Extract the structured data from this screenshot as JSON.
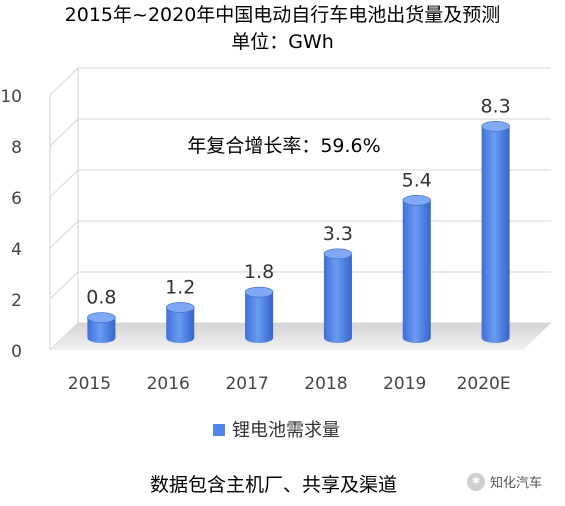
{
  "chart_data": {
    "type": "bar",
    "title": "2015年~2020年中国电动自行车电池出货量及预测",
    "subtitle": "单位：GWh",
    "categories": [
      "2015",
      "2016",
      "2017",
      "2018",
      "2019",
      "2020E"
    ],
    "series": [
      {
        "name": "锂电池需求量",
        "values": [
          0.8,
          1.2,
          1.8,
          3.3,
          5.4,
          8.3
        ]
      }
    ],
    "data_labels": [
      "0.8",
      "1.2",
      "1.8",
      "3.3",
      "5.4",
      "8.3"
    ],
    "y_ticks": [
      "0",
      "2",
      "4",
      "6",
      "8",
      "10"
    ],
    "ylim": [
      0,
      10
    ],
    "annotation": "年复合增长率：59.6%",
    "legend_position": "bottom",
    "grid": true,
    "bar_color": "#4f86ec"
  },
  "footnote": "数据包含主机厂、共享及渠道",
  "watermark": "知化汽车"
}
